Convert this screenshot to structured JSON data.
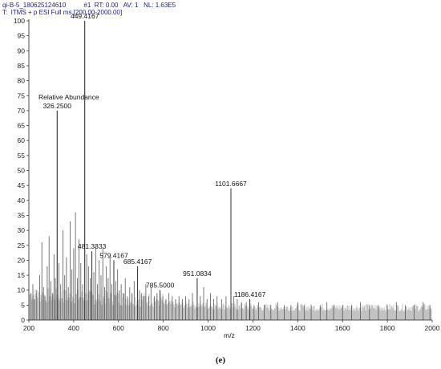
{
  "header": {
    "file_id": "qi-B-5_180625124610",
    "scan": "#1",
    "rt_label": "RT:",
    "rt_value": "0.00",
    "av_label": "AV:",
    "av_value": "1",
    "nl_label": "NL:",
    "nl_value": "1.63E5",
    "filter": "T:  ITMS + p ESI Full ms [200.00-2000.00]"
  },
  "caption": "(e)",
  "chart_data": {
    "type": "bar",
    "title": "",
    "xlabel": "m/z",
    "ylabel": "Relative Abundance",
    "xlim": [
      200,
      2000
    ],
    "ylim": [
      0,
      100
    ],
    "xticks": [
      200,
      400,
      600,
      800,
      1000,
      1200,
      1400,
      1600,
      1800,
      2000
    ],
    "yticks": [
      0,
      5,
      10,
      15,
      20,
      25,
      30,
      35,
      40,
      45,
      50,
      55,
      60,
      65,
      70,
      75,
      80,
      85,
      90,
      95,
      100
    ],
    "labeled_peaks": [
      {
        "mz": 449.4167,
        "label": "449.4167",
        "value": 100
      },
      {
        "mz": 326.25,
        "label": "326.2500",
        "value": 70
      },
      {
        "mz": 1101.6667,
        "label": "1101.6667",
        "value": 44
      },
      {
        "mz": 481.3333,
        "label": "481.3333",
        "value": 23
      },
      {
        "mz": 579.4167,
        "label": "579.4167",
        "value": 20
      },
      {
        "mz": 685.4167,
        "label": "685.4167",
        "value": 18
      },
      {
        "mz": 951.0834,
        "label": "951.0834",
        "value": 14
      },
      {
        "mz": 785.5,
        "label": "785.5000",
        "value": 10
      },
      {
        "mz": 1186.4167,
        "label": "1186.4167",
        "value": 7
      }
    ],
    "peaks": [
      [
        210,
        9
      ],
      [
        218,
        12
      ],
      [
        225,
        7
      ],
      [
        235,
        10
      ],
      [
        248,
        15
      ],
      [
        258,
        26
      ],
      [
        265,
        11
      ],
      [
        272,
        8
      ],
      [
        282,
        18
      ],
      [
        290,
        28
      ],
      [
        298,
        13
      ],
      [
        305,
        9
      ],
      [
        312,
        22
      ],
      [
        318,
        14
      ],
      [
        326.25,
        70
      ],
      [
        334,
        19
      ],
      [
        342,
        12
      ],
      [
        352,
        30
      ],
      [
        360,
        15
      ],
      [
        368,
        21
      ],
      [
        376,
        11
      ],
      [
        384,
        33
      ],
      [
        392,
        17
      ],
      [
        400,
        24
      ],
      [
        408,
        36
      ],
      [
        416,
        14
      ],
      [
        424,
        27
      ],
      [
        432,
        19
      ],
      [
        440,
        12
      ],
      [
        449.4167,
        100
      ],
      [
        458,
        22
      ],
      [
        466,
        18
      ],
      [
        474,
        14
      ],
      [
        481.3333,
        23
      ],
      [
        490,
        16
      ],
      [
        498,
        25
      ],
      [
        506,
        12
      ],
      [
        514,
        20
      ],
      [
        522,
        15
      ],
      [
        530,
        24
      ],
      [
        538,
        11
      ],
      [
        546,
        18
      ],
      [
        554,
        14
      ],
      [
        562,
        21
      ],
      [
        570,
        12
      ],
      [
        579.4167,
        20
      ],
      [
        588,
        13
      ],
      [
        596,
        17
      ],
      [
        604,
        10
      ],
      [
        612,
        12
      ],
      [
        620,
        9
      ],
      [
        630,
        14
      ],
      [
        640,
        8
      ],
      [
        650,
        11
      ],
      [
        660,
        9
      ],
      [
        670,
        13
      ],
      [
        685.4167,
        18
      ],
      [
        694,
        10
      ],
      [
        702,
        9
      ],
      [
        712,
        8
      ],
      [
        722,
        12
      ],
      [
        735,
        8
      ],
      [
        745,
        11
      ],
      [
        760,
        8
      ],
      [
        772,
        9
      ],
      [
        785.5,
        10
      ],
      [
        798,
        8
      ],
      [
        812,
        7
      ],
      [
        825,
        9
      ],
      [
        840,
        8
      ],
      [
        855,
        7
      ],
      [
        870,
        8
      ],
      [
        885,
        7
      ],
      [
        900,
        8
      ],
      [
        915,
        7
      ],
      [
        930,
        9
      ],
      [
        951.0834,
        14
      ],
      [
        965,
        8
      ],
      [
        980,
        11
      ],
      [
        995,
        7
      ],
      [
        1010,
        9
      ],
      [
        1025,
        7
      ],
      [
        1040,
        8
      ],
      [
        1060,
        7
      ],
      [
        1080,
        8
      ],
      [
        1101.6667,
        44
      ],
      [
        1115,
        8
      ],
      [
        1130,
        7
      ],
      [
        1150,
        6
      ],
      [
        1170,
        6
      ],
      [
        1186.4167,
        7
      ],
      [
        1205,
        5
      ],
      [
        1225,
        6
      ],
      [
        1250,
        5
      ],
      [
        1280,
        5
      ],
      [
        1310,
        6
      ],
      [
        1340,
        5
      ],
      [
        1370,
        5
      ],
      [
        1400,
        6
      ],
      [
        1430,
        5
      ],
      [
        1460,
        5
      ],
      [
        1500,
        5
      ],
      [
        1530,
        6
      ],
      [
        1560,
        5
      ],
      [
        1600,
        5
      ],
      [
        1640,
        5
      ],
      [
        1680,
        6
      ],
      [
        1720,
        5
      ],
      [
        1760,
        5
      ],
      [
        1800,
        5
      ],
      [
        1840,
        6
      ],
      [
        1880,
        5
      ],
      [
        1920,
        5
      ],
      [
        1960,
        6
      ],
      [
        1990,
        5
      ]
    ]
  }
}
